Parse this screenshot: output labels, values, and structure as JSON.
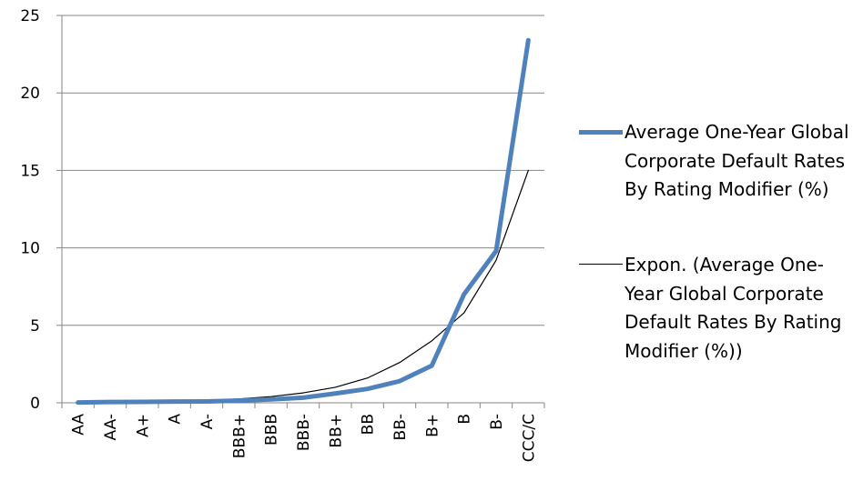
{
  "chart_data": {
    "type": "line",
    "categories": [
      "AA",
      "AA-",
      "A+",
      "A",
      "A-",
      "BBB+",
      "BBB",
      "BBB-",
      "BB+",
      "BB",
      "BB-",
      "B+",
      "B",
      "B-",
      "CCC/C"
    ],
    "series": [
      {
        "name": "Average One-Year Global Corporate Default Rates By Rating Modifier (%)",
        "values": [
          0.02,
          0.05,
          0.06,
          0.08,
          0.09,
          0.14,
          0.22,
          0.33,
          0.6,
          0.9,
          1.4,
          2.4,
          7.0,
          9.8,
          23.4
        ],
        "color": "#4F81BD",
        "style": "thick"
      },
      {
        "name": "Expon. (Average One-Year Global Corporate Default Rates By Rating Modifier (%))",
        "values": [
          0.024,
          0.039,
          0.062,
          0.1,
          0.16,
          0.25,
          0.4,
          0.64,
          1.0,
          1.6,
          2.6,
          4.0,
          5.8,
          9.2,
          15.0
        ],
        "color": "#000000",
        "style": "thin"
      }
    ],
    "ylim": [
      0,
      25
    ],
    "yticks": [
      "0",
      "5",
      "10",
      "15",
      "20",
      "25"
    ],
    "grid": true,
    "legend_position": "right",
    "xlabel": "",
    "ylabel": "",
    "title": ""
  }
}
